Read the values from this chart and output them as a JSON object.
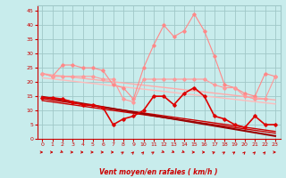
{
  "x": [
    0,
    1,
    2,
    3,
    4,
    5,
    6,
    7,
    8,
    9,
    10,
    11,
    12,
    13,
    14,
    15,
    16,
    17,
    18,
    19,
    20,
    21,
    22,
    23
  ],
  "series": [
    {
      "name": "rafales_peak",
      "color": "#ff8888",
      "lw": 0.8,
      "marker": "D",
      "ms": 1.8,
      "values": [
        23,
        22,
        26,
        26,
        25,
        25,
        24,
        19,
        18,
        14,
        25,
        33,
        40,
        36,
        38,
        44,
        38,
        29,
        19,
        18,
        16,
        15,
        23,
        22
      ]
    },
    {
      "name": "rafales_mid",
      "color": "#ff9999",
      "lw": 0.8,
      "marker": "D",
      "ms": 1.8,
      "values": [
        23,
        22,
        22,
        22,
        22,
        22,
        21,
        21,
        14,
        13,
        21,
        21,
        21,
        21,
        21,
        21,
        21,
        19,
        18,
        18,
        15,
        14,
        14,
        22
      ]
    },
    {
      "name": "trend_pink_upper",
      "color": "#ffaaaa",
      "lw": 1.0,
      "marker": null,
      "values": [
        23.0,
        22.5,
        22.1,
        21.7,
        21.3,
        20.9,
        20.5,
        20.1,
        19.7,
        19.3,
        18.9,
        18.5,
        18.1,
        17.7,
        17.3,
        16.9,
        16.5,
        16.1,
        15.7,
        15.3,
        14.9,
        14.5,
        14.1,
        13.7
      ]
    },
    {
      "name": "trend_pink_lower",
      "color": "#ffbbbb",
      "lw": 1.0,
      "marker": null,
      "values": [
        21.5,
        21.1,
        20.7,
        20.3,
        19.9,
        19.5,
        19.1,
        18.7,
        18.3,
        17.9,
        17.5,
        17.1,
        16.7,
        16.3,
        15.9,
        15.5,
        15.1,
        14.7,
        14.3,
        13.9,
        13.5,
        13.1,
        12.7,
        12.3
      ]
    },
    {
      "name": "vent_moyen",
      "color": "#dd0000",
      "lw": 1.2,
      "marker": "D",
      "ms": 1.8,
      "values": [
        14.5,
        14.5,
        14,
        13,
        12,
        12,
        11,
        5,
        7,
        8,
        10,
        15,
        15,
        12,
        16,
        18,
        15,
        8,
        7,
        5,
        4,
        8,
        5,
        5
      ]
    },
    {
      "name": "trend_red1",
      "color": "#cc0000",
      "lw": 1.0,
      "marker": null,
      "values": [
        14.2,
        13.6,
        13.1,
        12.6,
        12.1,
        11.6,
        11.1,
        10.6,
        10.1,
        9.6,
        9.1,
        8.6,
        8.1,
        7.6,
        7.1,
        6.6,
        6.1,
        5.6,
        5.1,
        4.6,
        4.1,
        3.6,
        3.1,
        2.6
      ]
    },
    {
      "name": "trend_red2",
      "color": "#cc0000",
      "lw": 1.0,
      "marker": null,
      "values": [
        13.5,
        13.0,
        12.5,
        12.0,
        11.5,
        11.0,
        10.5,
        10.0,
        9.5,
        9.0,
        8.5,
        8.0,
        7.5,
        7.0,
        6.5,
        6.0,
        5.5,
        5.0,
        4.5,
        4.0,
        3.5,
        3.0,
        2.5,
        2.0
      ]
    },
    {
      "name": "trend_dark",
      "color": "#990000",
      "lw": 1.5,
      "marker": null,
      "values": [
        14.8,
        14.2,
        13.6,
        13.0,
        12.4,
        11.8,
        11.2,
        10.6,
        10.0,
        9.4,
        8.8,
        8.2,
        7.6,
        7.0,
        6.4,
        5.8,
        5.2,
        4.6,
        4.0,
        3.4,
        2.8,
        2.2,
        1.6,
        1.0
      ]
    }
  ],
  "ylim": [
    0,
    47
  ],
  "yticks": [
    0,
    5,
    10,
    15,
    20,
    25,
    30,
    35,
    40,
    45
  ],
  "xlim": [
    -0.5,
    23.5
  ],
  "xticks": [
    0,
    1,
    2,
    3,
    4,
    5,
    6,
    7,
    8,
    9,
    10,
    11,
    12,
    13,
    14,
    15,
    16,
    17,
    18,
    19,
    20,
    21,
    22,
    23
  ],
  "xlabel": "Vent moyen/en rafales ( km/h )",
  "bg_color": "#c8ecec",
  "grid_color": "#a0c8c8",
  "axis_color": "#cc0000",
  "label_color": "#cc0000"
}
